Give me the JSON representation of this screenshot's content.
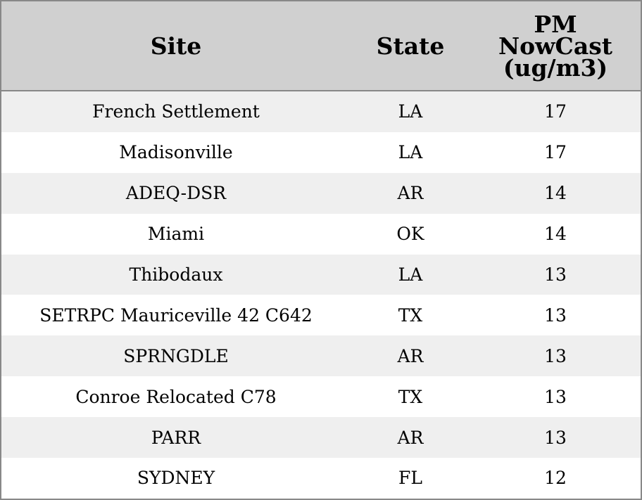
{
  "chart_data": {
    "type": "table",
    "columns": [
      "Site",
      "State",
      "PM NowCast (ug/m3)"
    ],
    "header_lines": {
      "pm": [
        "PM",
        "NowCast",
        "(ug/m3)"
      ]
    },
    "rows": [
      {
        "site": "French Settlement",
        "state": "LA",
        "pm": "17"
      },
      {
        "site": "Madisonville",
        "state": "LA",
        "pm": "17"
      },
      {
        "site": "ADEQ-DSR",
        "state": "AR",
        "pm": "14"
      },
      {
        "site": "Miami",
        "state": "OK",
        "pm": "14"
      },
      {
        "site": "Thibodaux",
        "state": "LA",
        "pm": "13"
      },
      {
        "site": "SETRPC Mauriceville 42 C642",
        "state": "TX",
        "pm": "13"
      },
      {
        "site": "SPRNGDLE",
        "state": "AR",
        "pm": "13"
      },
      {
        "site": "Conroe Relocated C78",
        "state": "TX",
        "pm": "13"
      },
      {
        "site": "PARR",
        "state": "AR",
        "pm": "13"
      },
      {
        "site": "SYDNEY",
        "state": "FL",
        "pm": "12"
      }
    ]
  },
  "colors": {
    "header_background": "#d0d0d0",
    "stripe_background": "#efefef",
    "row_background": "#ffffff",
    "border": "#888888"
  }
}
